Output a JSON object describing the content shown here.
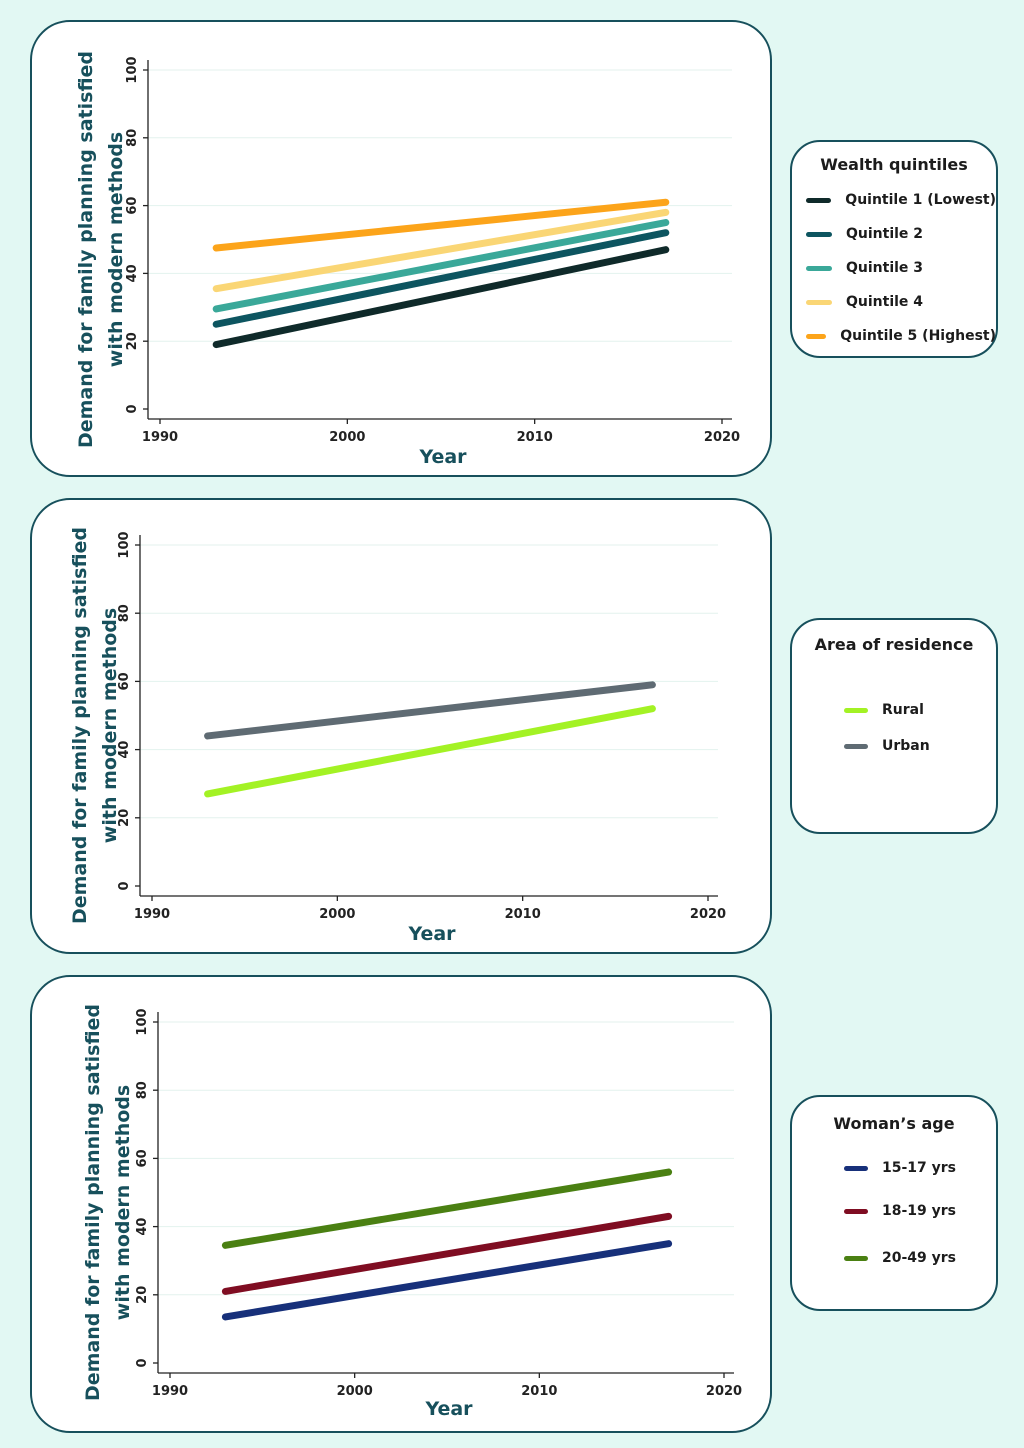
{
  "chart_data": [
    {
      "type": "line",
      "xlabel": "Year",
      "ylabel_lines": [
        "Demand for family planning satisfied",
        "with modern methods"
      ],
      "xlim": [
        1990,
        2020
      ],
      "ylim": [
        0,
        100
      ],
      "xticks": [
        1990,
        2000,
        2010,
        2020
      ],
      "yticks": [
        0,
        20,
        40,
        60,
        80,
        100
      ],
      "grid": true,
      "legend_title": "Wealth quintiles",
      "series": [
        {
          "name": "Quintile 1 (Lowest)",
          "color": "#0f2a2a",
          "x": [
            1993,
            2017
          ],
          "values": [
            19,
            47
          ]
        },
        {
          "name": "Quintile 2",
          "color": "#0d5560",
          "x": [
            1993,
            2017
          ],
          "values": [
            25,
            52
          ]
        },
        {
          "name": "Quintile 3",
          "color": "#3aa899",
          "x": [
            1993,
            2017
          ],
          "values": [
            29.5,
            55
          ]
        },
        {
          "name": "Quintile 4",
          "color": "#fad675",
          "x": [
            1993,
            2017
          ],
          "values": [
            35.5,
            58
          ]
        },
        {
          "name": "Quintile 5 (Highest)",
          "color": "#fca41a",
          "x": [
            1993,
            2017
          ],
          "values": [
            47.5,
            61
          ]
        }
      ]
    },
    {
      "type": "line",
      "xlabel": "Year",
      "ylabel_lines": [
        "Demand for family planning satisfied",
        "with modern methods"
      ],
      "xlim": [
        1990,
        2020
      ],
      "ylim": [
        0,
        100
      ],
      "xticks": [
        1990,
        2000,
        2010,
        2020
      ],
      "yticks": [
        0,
        20,
        40,
        60,
        80,
        100
      ],
      "grid": true,
      "legend_title": "Area of residence",
      "series": [
        {
          "name": "Rural",
          "color": "#a3f224",
          "x": [
            1993,
            2017
          ],
          "values": [
            27,
            52
          ]
        },
        {
          "name": "Urban",
          "color": "#5f6b73",
          "x": [
            1993,
            2017
          ],
          "values": [
            44,
            59
          ]
        }
      ]
    },
    {
      "type": "line",
      "xlabel": "Year",
      "ylabel_lines": [
        "Demand for family planning satisfied",
        "with modern methods"
      ],
      "xlim": [
        1990,
        2020
      ],
      "ylim": [
        0,
        100
      ],
      "xticks": [
        1990,
        2000,
        2010,
        2020
      ],
      "yticks": [
        0,
        20,
        40,
        60,
        80,
        100
      ],
      "grid": true,
      "legend_title": "Woman’s age",
      "series": [
        {
          "name": "15-17 yrs",
          "color": "#17307a",
          "x": [
            1993,
            2017
          ],
          "values": [
            13.5,
            35
          ]
        },
        {
          "name": "18-19 yrs",
          "color": "#7f0d22",
          "x": [
            1993,
            2017
          ],
          "values": [
            21,
            43
          ]
        },
        {
          "name": "20-49 yrs",
          "color": "#4a8012",
          "x": [
            1993,
            2017
          ],
          "values": [
            34.5,
            56
          ]
        }
      ]
    }
  ]
}
